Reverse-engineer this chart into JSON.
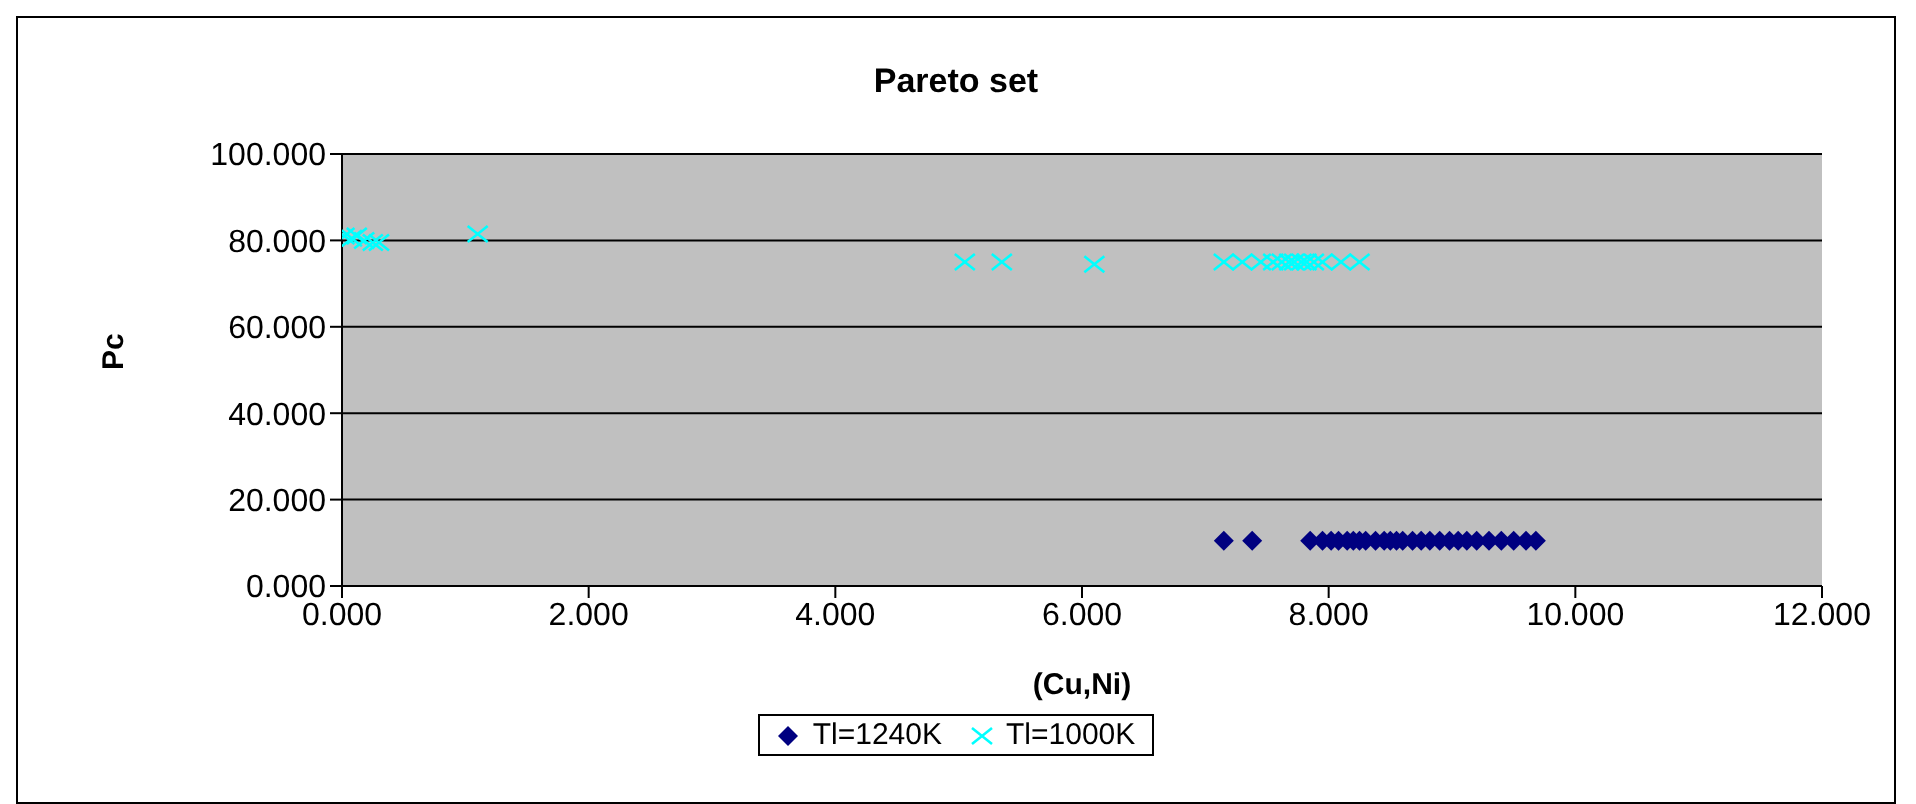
{
  "chart_data": {
    "type": "scatter",
    "title": "Pareto set",
    "xlabel": "(Cu,Ni)",
    "ylabel": "Pc",
    "xlim": [
      0,
      12
    ],
    "xticks": [
      {
        "value": 0,
        "label": "0.000"
      },
      {
        "value": 2,
        "label": "2.000"
      },
      {
        "value": 4,
        "label": "4.000"
      },
      {
        "value": 6,
        "label": "6.000"
      },
      {
        "value": 8,
        "label": "8.000"
      },
      {
        "value": 10,
        "label": "10.000"
      },
      {
        "value": 12,
        "label": "12.000"
      }
    ],
    "ylim": [
      0,
      100
    ],
    "yticks": [
      {
        "value": 0,
        "label": "0.000"
      },
      {
        "value": 20,
        "label": "20.000"
      },
      {
        "value": 40,
        "label": "40.000"
      },
      {
        "value": 60,
        "label": "60.000"
      },
      {
        "value": 80,
        "label": "80.000"
      },
      {
        "value": 100,
        "label": "100.000"
      }
    ],
    "grid": "y",
    "legend": "bottom",
    "series": [
      {
        "name": "Tl=1240K",
        "color": "#000080",
        "marker": "diamond",
        "x": [
          7.15,
          7.38,
          7.85,
          7.95,
          8.02,
          8.08,
          8.15,
          8.2,
          8.25,
          8.3,
          8.38,
          8.45,
          8.5,
          8.55,
          8.6,
          8.68,
          8.75,
          8.82,
          8.9,
          8.98,
          9.05,
          9.12,
          9.2,
          9.3,
          9.4,
          9.5,
          9.6,
          9.68
        ],
        "values": [
          10.5,
          10.5,
          10.5,
          10.5,
          10.5,
          10.5,
          10.5,
          10.5,
          10.5,
          10.5,
          10.5,
          10.5,
          10.5,
          10.5,
          10.5,
          10.5,
          10.5,
          10.5,
          10.5,
          10.5,
          10.5,
          10.5,
          10.5,
          10.5,
          10.5,
          10.5,
          10.5,
          10.5
        ]
      },
      {
        "name": "Tl=1000K",
        "color": "#00ffff",
        "marker": "cross",
        "x": [
          0.02,
          0.08,
          0.12,
          0.18,
          0.25,
          0.3,
          1.1,
          5.05,
          5.35,
          6.1,
          7.15,
          7.3,
          7.45,
          7.55,
          7.62,
          7.68,
          7.72,
          7.78,
          7.82,
          7.88,
          7.95,
          8.1,
          8.25
        ],
        "values": [
          81,
          80.5,
          81,
          80,
          79.5,
          79.5,
          81.5,
          75,
          75,
          74.5,
          75,
          75,
          75,
          75,
          75,
          75,
          75,
          75,
          75,
          75,
          75,
          75,
          75
        ]
      }
    ]
  }
}
